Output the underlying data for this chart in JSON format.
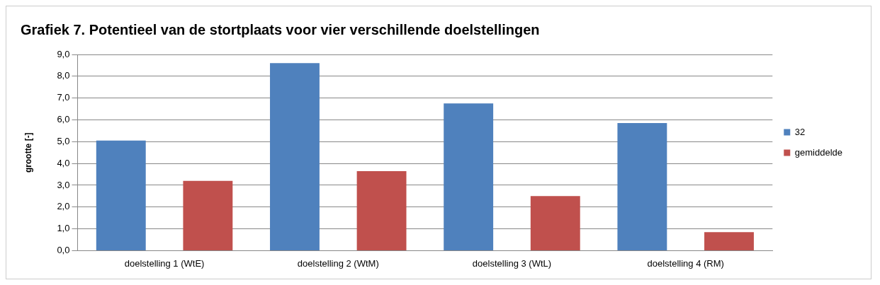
{
  "chart_data": {
    "type": "bar",
    "title": "Grafiek 7. Potentieel van de stortplaats voor vier verschillende doelstellingen",
    "ylabel": "grootte [-]",
    "categories": [
      "doelstelling 1 (WtE)",
      "doelstelling 2 (WtM)",
      "doelstelling 3 (WtL)",
      "doelstelling 4 (RM)"
    ],
    "series": [
      {
        "name": "32",
        "color": "#4f81bd",
        "values": [
          5.05,
          8.6,
          6.75,
          5.85
        ]
      },
      {
        "name": "gemiddelde",
        "color": "#c0504d",
        "values": [
          3.2,
          3.65,
          2.5,
          0.85
        ]
      }
    ],
    "ylim": [
      0,
      9
    ],
    "yticks": [
      {
        "value": 0,
        "label": "0,0"
      },
      {
        "value": 1,
        "label": "1,0"
      },
      {
        "value": 2,
        "label": "2,0"
      },
      {
        "value": 3,
        "label": "3,0"
      },
      {
        "value": 4,
        "label": "4,0"
      },
      {
        "value": 5,
        "label": "5,0"
      },
      {
        "value": 6,
        "label": "6,0"
      },
      {
        "value": 7,
        "label": "7,0"
      },
      {
        "value": 8,
        "label": "8,0"
      },
      {
        "value": 9,
        "label": "9,0"
      }
    ],
    "grid": "y",
    "legend": "right"
  }
}
